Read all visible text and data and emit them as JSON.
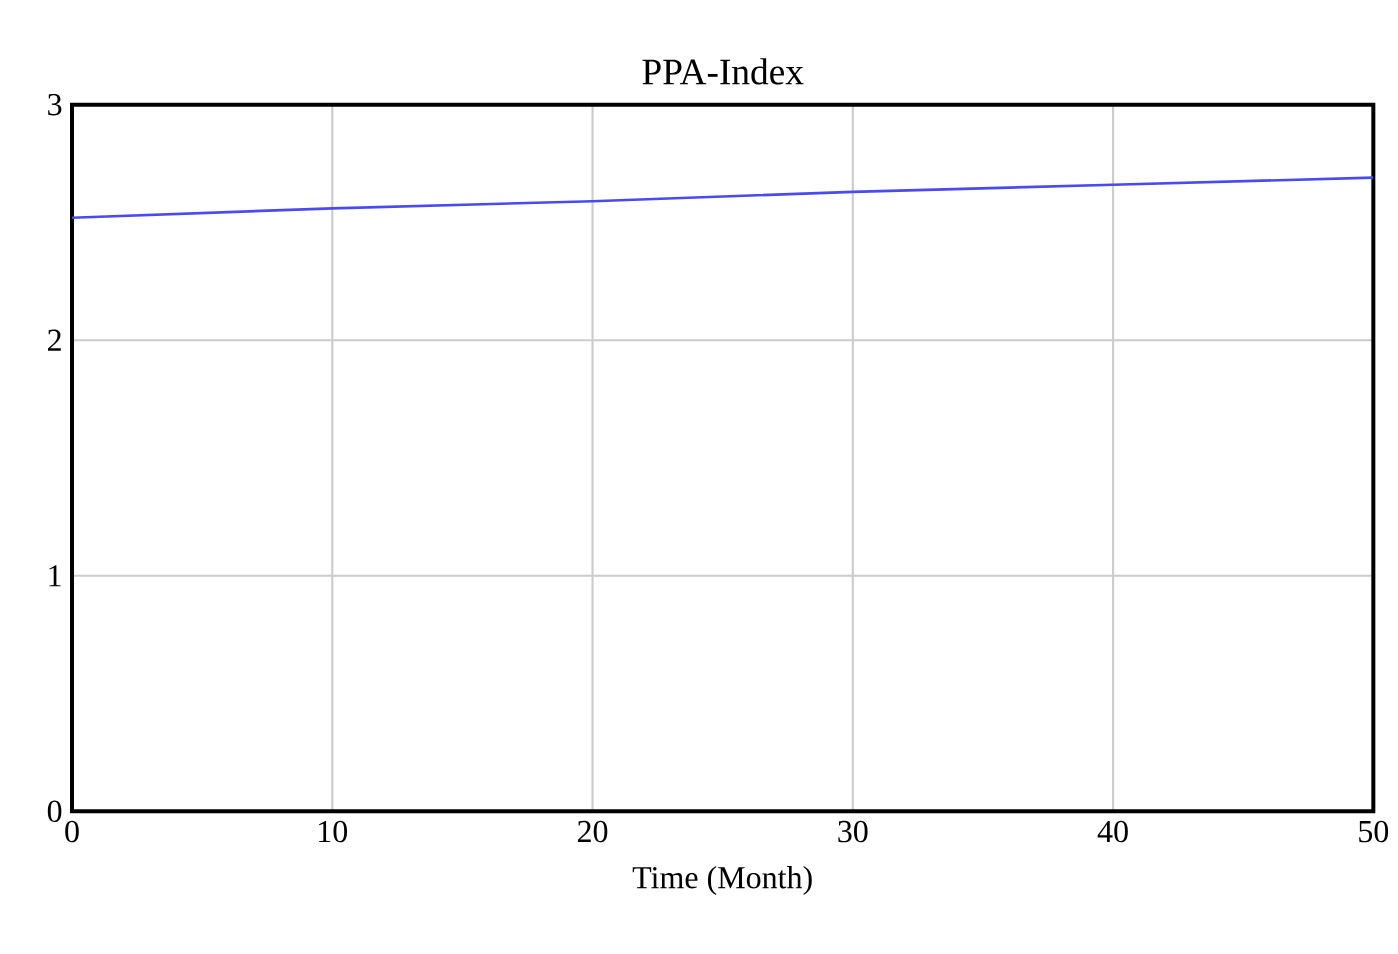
{
  "chart_data": {
    "type": "line",
    "title": "PPA-Index",
    "xlabel": "Time (Month)",
    "x": [
      0,
      10,
      20,
      30,
      40,
      50
    ],
    "series": [
      {
        "color": "#4a4af0",
        "values": [
          2.52,
          2.56,
          2.59,
          2.63,
          2.66,
          2.69
        ]
      }
    ],
    "xlim": [
      0,
      50
    ],
    "ylim": [
      0,
      3
    ],
    "xticks": [
      0,
      10,
      20,
      30,
      40,
      50
    ],
    "yticks": [
      0,
      1,
      2,
      3
    ],
    "grid": true,
    "marker": "none",
    "line_style": "solid"
  }
}
